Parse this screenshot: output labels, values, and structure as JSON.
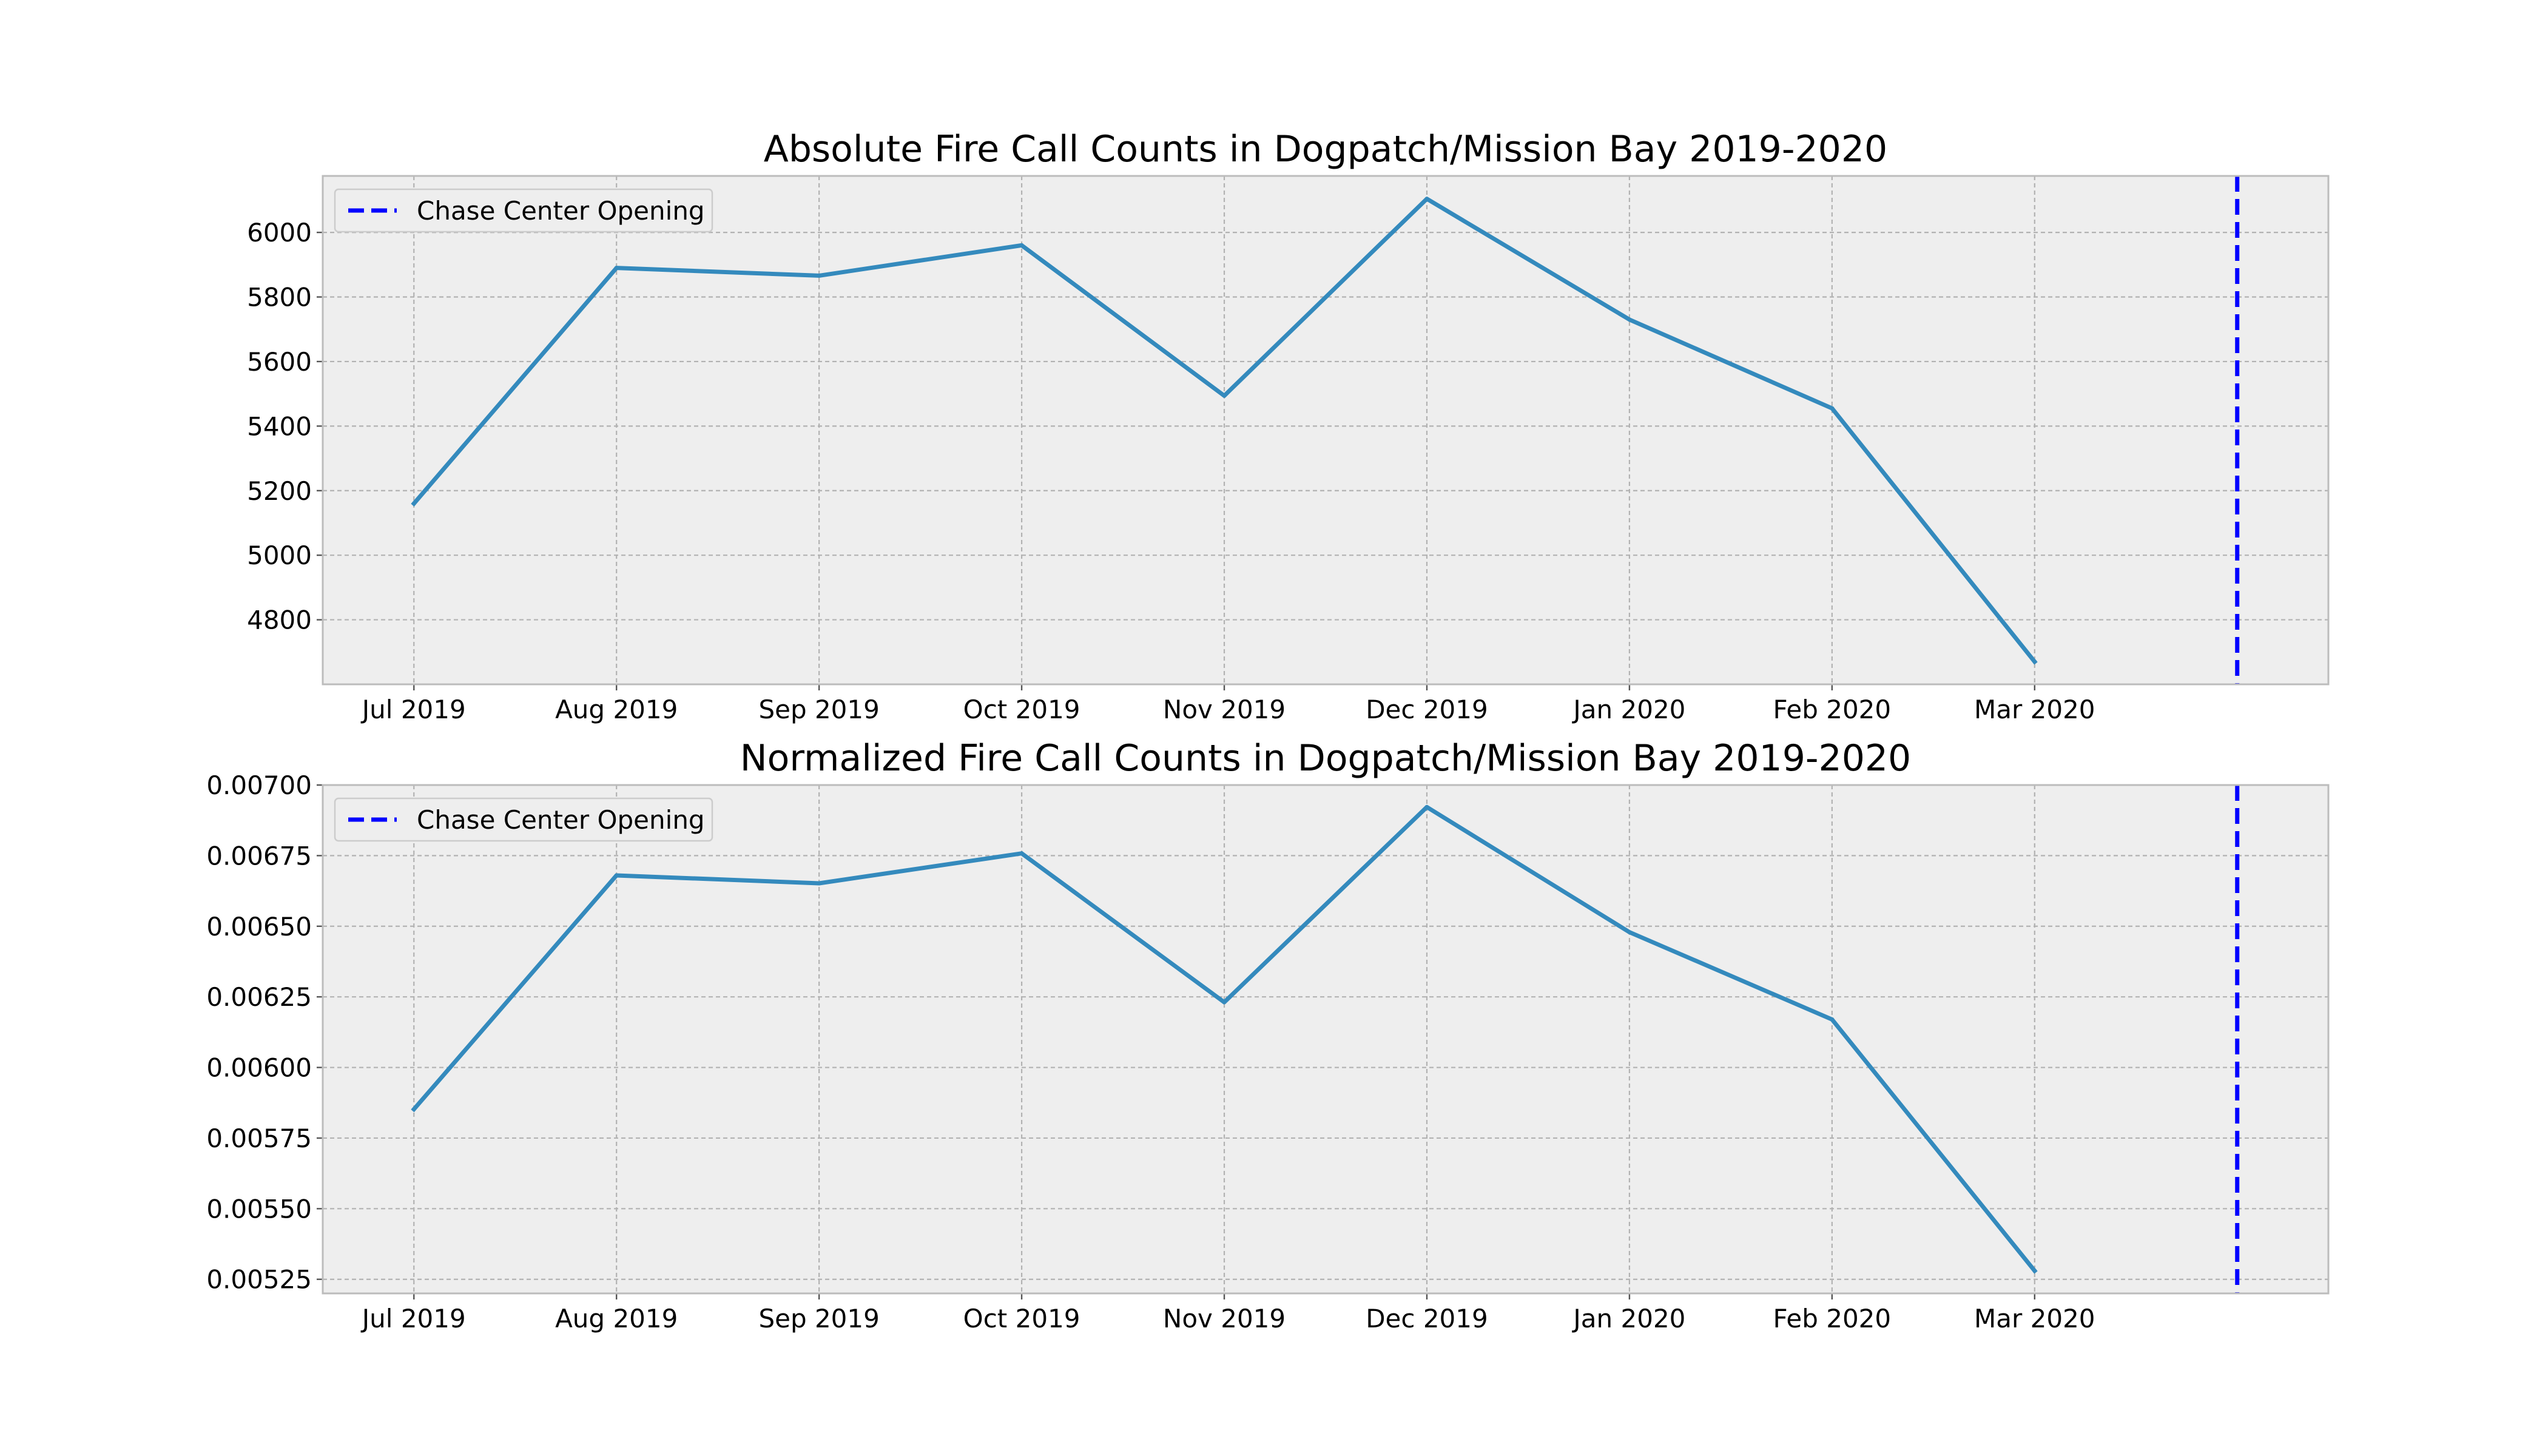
{
  "colors": {
    "series": "#348ABD",
    "event": "#0000FF"
  },
  "chart_data": [
    {
      "type": "line",
      "title": "Absolute Fire Call Counts in Dogpatch/Mission Bay 2019-2020",
      "xlabel": "",
      "ylabel": "",
      "x": [
        "Jul 2019",
        "Aug 2019",
        "Sep 2019",
        "Oct 2019",
        "Nov 2019",
        "Dec 2019",
        "Jan 2020",
        "Feb 2020",
        "Mar 2020"
      ],
      "values": [
        5160,
        5890,
        5866,
        5960,
        5494,
        6104,
        5730,
        5455,
        4670
      ],
      "event": {
        "label": "Chase Center Opening",
        "position_category_index": 9
      },
      "x_range_category_index": [
        -0.45,
        9.45
      ],
      "ylim": [
        4600,
        6175
      ],
      "yticks": [
        4800,
        5000,
        5200,
        5400,
        5600,
        5800,
        6000
      ],
      "ytick_labels": [
        "4800",
        "5000",
        "5200",
        "5400",
        "5600",
        "5800",
        "6000"
      ],
      "grid": true,
      "legend": "upper-left"
    },
    {
      "type": "line",
      "title": "Normalized Fire Call Counts in Dogpatch/Mission Bay 2019-2020",
      "xlabel": "",
      "ylabel": "",
      "x": [
        "Jul 2019",
        "Aug 2019",
        "Sep 2019",
        "Oct 2019",
        "Nov 2019",
        "Dec 2019",
        "Jan 2020",
        "Feb 2020",
        "Mar 2020"
      ],
      "values": [
        0.005852,
        0.00668,
        0.006652,
        0.006758,
        0.006231,
        0.006922,
        0.006479,
        0.00617,
        0.00528
      ],
      "event": {
        "label": "Chase Center Opening",
        "position_category_index": 9
      },
      "x_range_category_index": [
        -0.45,
        9.45
      ],
      "ylim": [
        0.0052,
        0.007
      ],
      "yticks": [
        0.00525,
        0.0055,
        0.00575,
        0.006,
        0.00625,
        0.0065,
        0.00675,
        0.007
      ],
      "ytick_labels": [
        "0.00525",
        "0.00550",
        "0.00575",
        "0.00600",
        "0.00625",
        "0.00650",
        "0.00675",
        "0.00700"
      ],
      "grid": true,
      "legend": "upper-left"
    }
  ]
}
